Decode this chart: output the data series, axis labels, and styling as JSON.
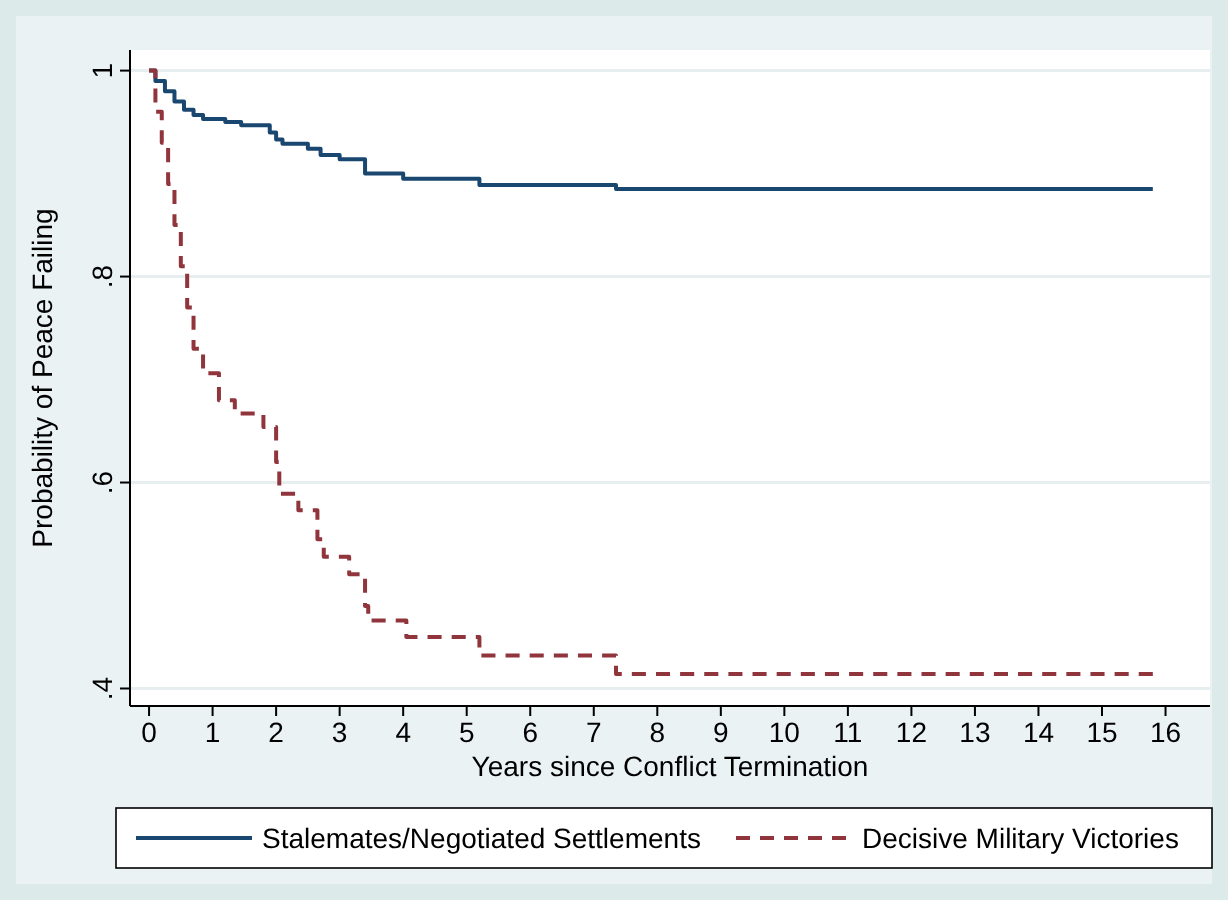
{
  "chart_data": {
    "type": "step",
    "xlabel": "Years since Conflict Termination",
    "ylabel": "Probability of Peace Failing",
    "xlim": [
      -0.3,
      16.7
    ],
    "xticks": [
      0,
      1,
      2,
      3,
      4,
      5,
      6,
      7,
      8,
      9,
      10,
      11,
      12,
      13,
      14,
      15,
      16
    ],
    "ylim": [
      0.383,
      1.02
    ],
    "yticks": [
      {
        "value": 0.4,
        "label": ".4"
      },
      {
        "value": 0.6,
        "label": ".6"
      },
      {
        "value": 0.8,
        "label": ".8"
      },
      1
    ],
    "grid": "y",
    "legend": "bottom",
    "series": [
      {
        "name": "Stalemates/Negotiated Settlements",
        "color": "#1a476f",
        "line_style": "solid",
        "x": [
          0,
          0.1,
          0.25,
          0.4,
          0.55,
          0.7,
          0.85,
          1.2,
          1.45,
          1.9,
          2.0,
          2.1,
          2.5,
          2.7,
          3.0,
          3.4,
          4.0,
          5.2,
          7.35,
          15.8
        ],
        "values": [
          1,
          0.99,
          0.98,
          0.97,
          0.962,
          0.957,
          0.953,
          0.95,
          0.947,
          0.94,
          0.933,
          0.929,
          0.924,
          0.918,
          0.914,
          0.9,
          0.895,
          0.889,
          0.885,
          0.885
        ]
      },
      {
        "name": "Decisive Military Victories",
        "color": "#90353b",
        "line_style": "dashed",
        "x": [
          0,
          0.1,
          0.2,
          0.3,
          0.4,
          0.5,
          0.6,
          0.7,
          0.85,
          1.1,
          1.35,
          1.8,
          2.0,
          2.05,
          2.35,
          2.65,
          2.75,
          3.15,
          3.4,
          3.45,
          4.05,
          5.2,
          7.35,
          15.8
        ],
        "values": [
          1,
          0.96,
          0.93,
          0.89,
          0.85,
          0.81,
          0.77,
          0.73,
          0.706,
          0.68,
          0.667,
          0.654,
          0.62,
          0.589,
          0.573,
          0.545,
          0.528,
          0.511,
          0.48,
          0.466,
          0.45,
          0.432,
          0.414,
          0.414
        ]
      }
    ]
  }
}
